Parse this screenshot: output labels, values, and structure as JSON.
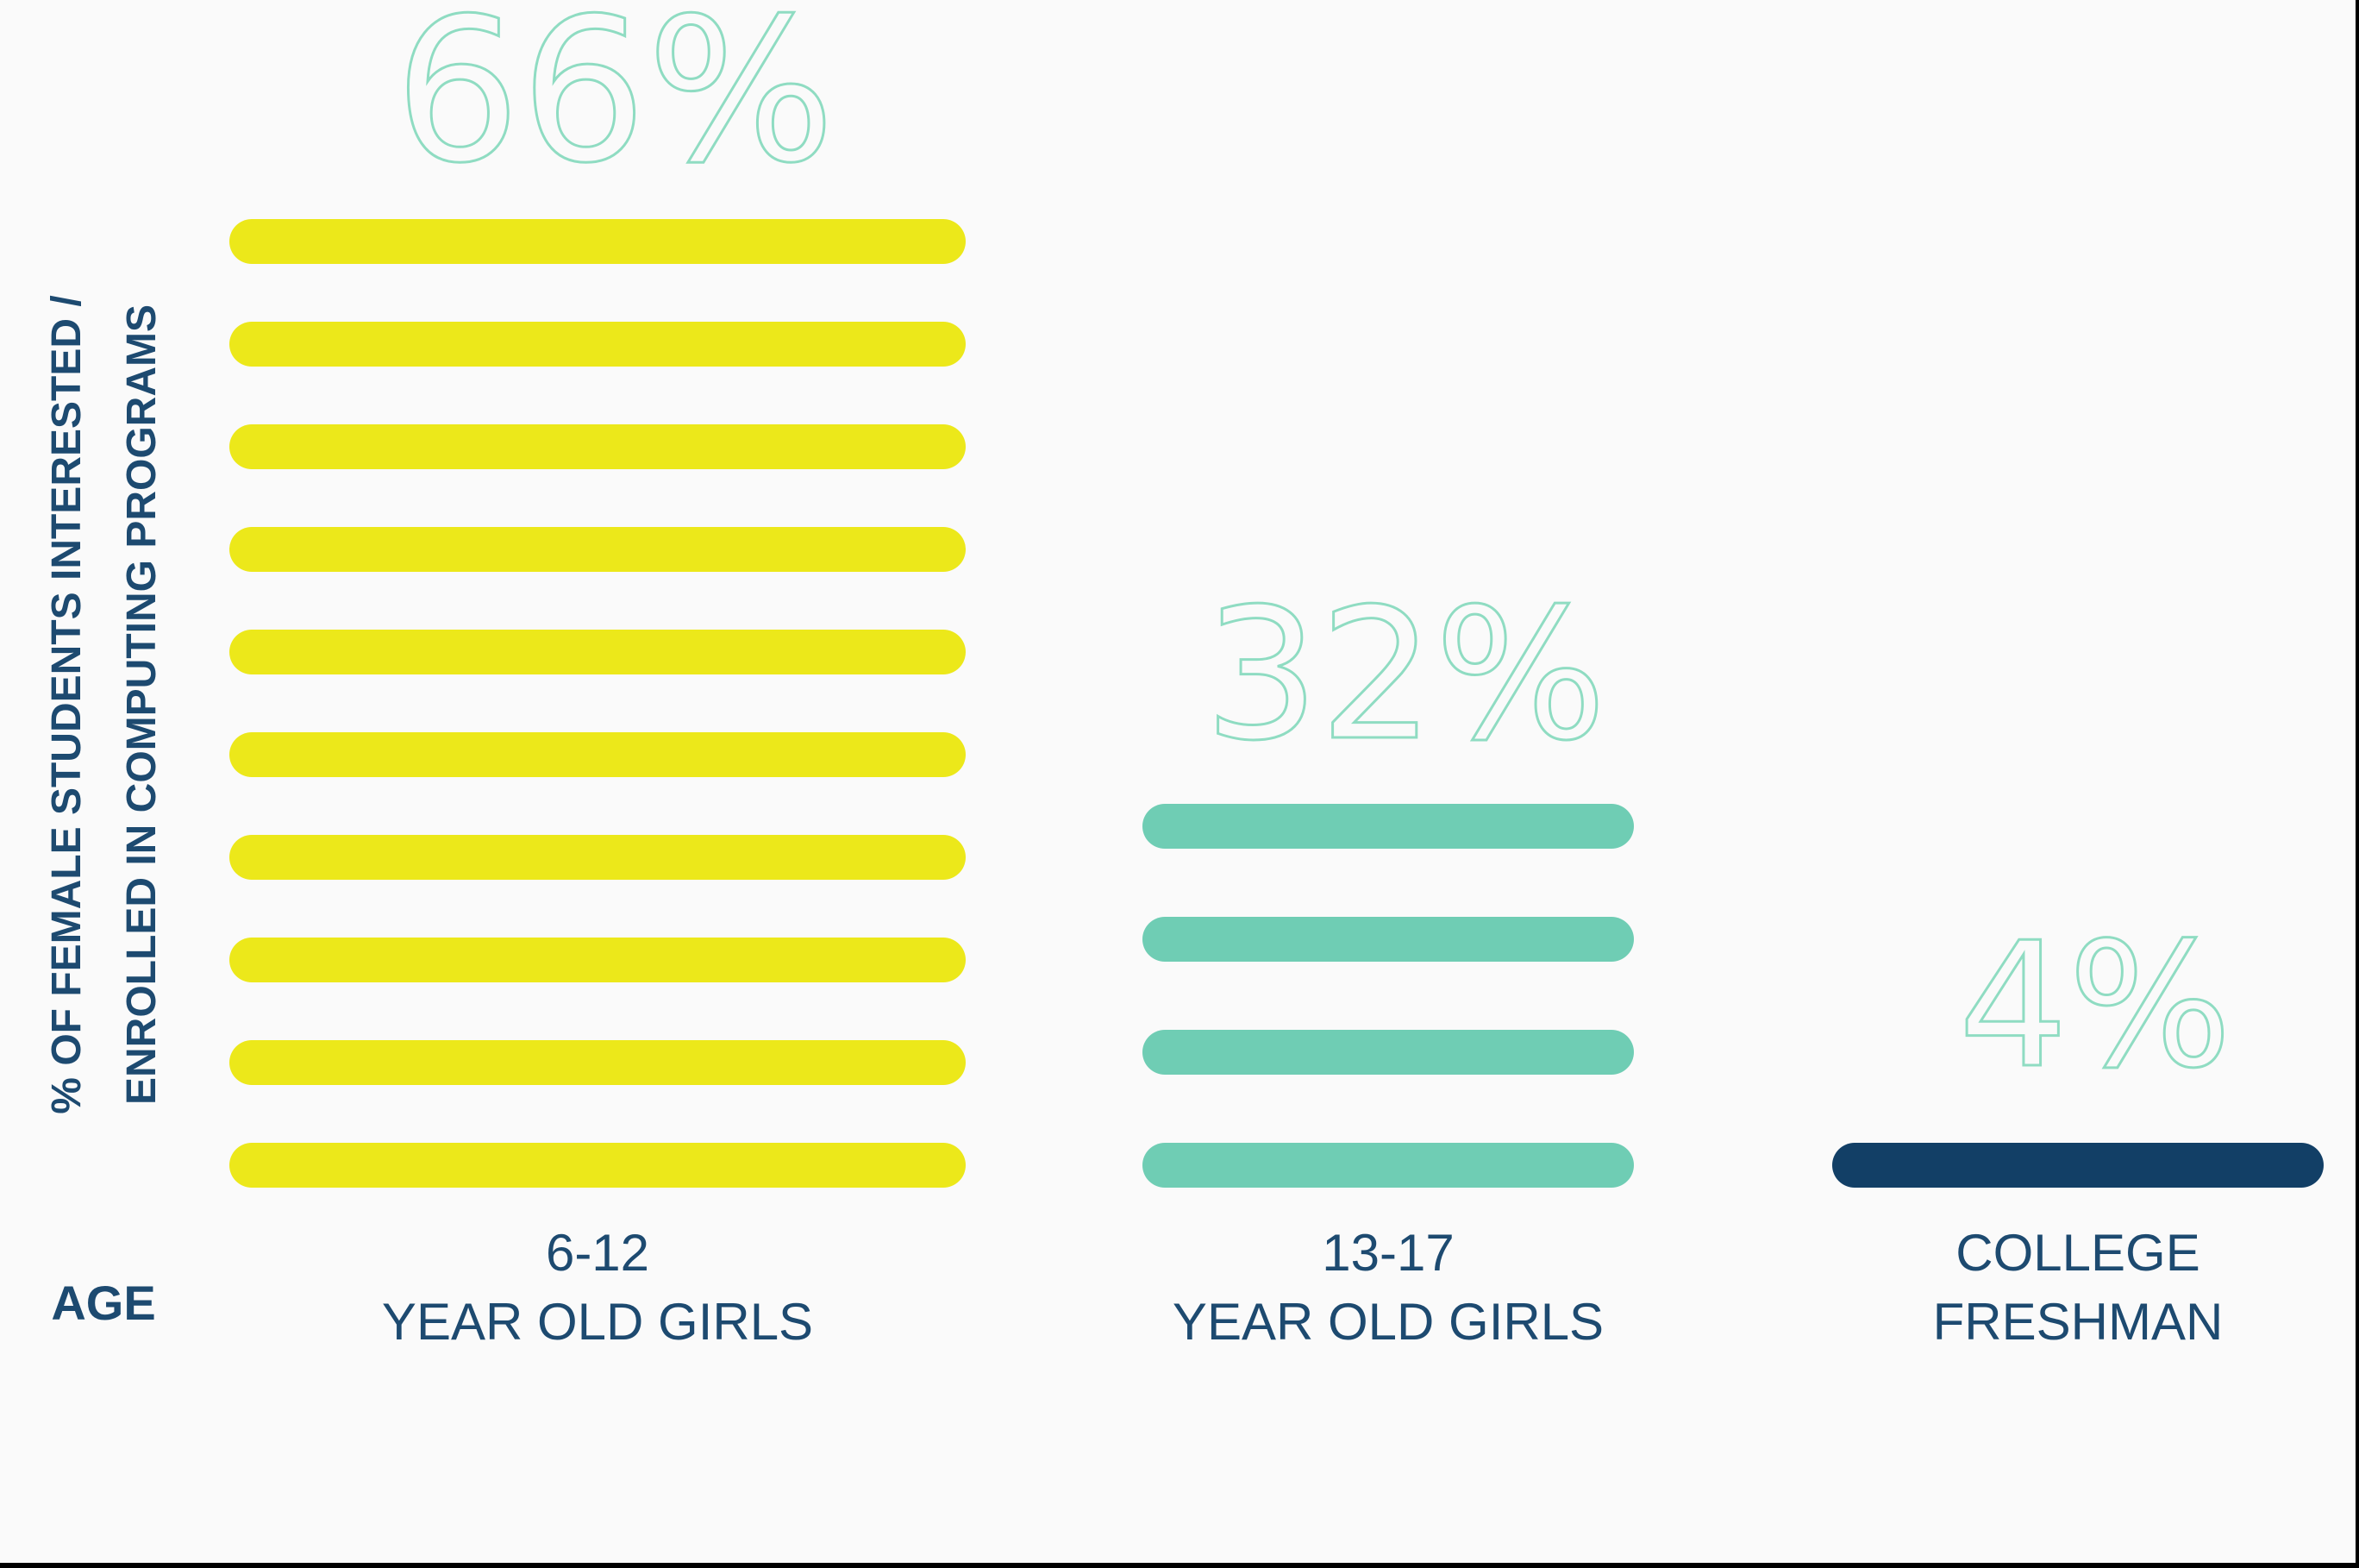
{
  "chart_data": {
    "type": "bar",
    "ylabel_line1": "% OF FEMALE STUDENTS INTERESTED /",
    "ylabel_line2": "ENROLLED IN COMPUTING PROGRAMS",
    "xlabel": "AGE",
    "categories": [
      {
        "line1": "6-12",
        "line2": "YEAR OLD GIRLS"
      },
      {
        "line1": "13-17",
        "line2": "YEAR OLD GIRLS"
      },
      {
        "line1": "COLLEGE",
        "line2": "FRESHMAN"
      }
    ],
    "values": [
      66,
      32,
      4
    ],
    "value_labels": [
      "66%",
      "32%",
      "4%"
    ],
    "stripe_counts": [
      10,
      4,
      1
    ],
    "colors": [
      "#ece81a",
      "#6fcdb4",
      "#123f66"
    ],
    "label_outline_color": "#8fdcc2",
    "grid": false,
    "legend": "none"
  }
}
